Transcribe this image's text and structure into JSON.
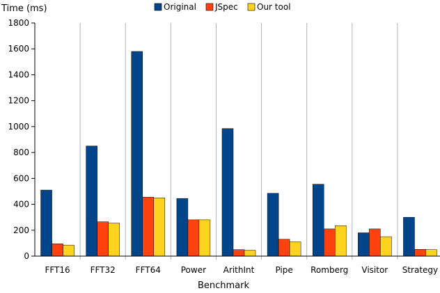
{
  "chart_data": {
    "type": "bar",
    "ylabel": "Time (ms)",
    "xlabel": "Benchmark",
    "ylim": [
      0,
      1800
    ],
    "yticks": [
      0,
      200,
      400,
      600,
      800,
      1000,
      1200,
      1400,
      1600,
      1800
    ],
    "grid": "vertical-category-separators",
    "legend_position": "top-center",
    "categories": [
      "FFT16",
      "FFT32",
      "FFT64",
      "Power",
      "ArithInt",
      "Pipe",
      "Romberg",
      "Visitor",
      "Strategy"
    ],
    "series": [
      {
        "name": "Original",
        "color": "#00458a",
        "values": [
          510,
          850,
          1580,
          445,
          985,
          485,
          555,
          180,
          300
        ]
      },
      {
        "name": "JSpec",
        "color": "#ff420e",
        "values": [
          95,
          265,
          455,
          280,
          50,
          130,
          210,
          210,
          52
        ]
      },
      {
        "name": "Our tool",
        "color": "#ffd320",
        "values": [
          85,
          255,
          450,
          280,
          45,
          110,
          235,
          150,
          50
        ]
      }
    ]
  }
}
